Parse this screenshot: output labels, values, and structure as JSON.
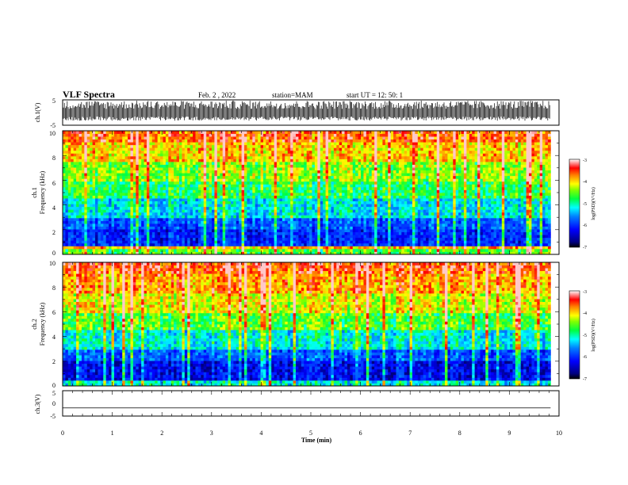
{
  "header": {
    "title": "VLF Spectra",
    "date": "Feb. 2 , 2022",
    "station": "station=MAM",
    "start": "start UT = 12: 50: 1"
  },
  "colors": {
    "spectrogram_scale": [
      "#000080",
      "#0000ff",
      "#0080ff",
      "#00ffff",
      "#00ff80",
      "#80ff00",
      "#ffff00",
      "#ff8000",
      "#ff0000",
      "#ffffff"
    ],
    "axes": "#000000",
    "waveform": "#000000"
  },
  "chart_data": [
    {
      "type": "line",
      "name": "ch1-waveform",
      "ylabel": "ch.1(V)",
      "ylim": [
        -5,
        5
      ],
      "yticks": [
        "5",
        "-5"
      ],
      "xlim": [
        0,
        10
      ],
      "description_values": {
        "x": [
          0,
          9.83
        ],
        "y_envelope_upper": 4.7,
        "y_envelope_lower": -3.2
      }
    },
    {
      "type": "heatmap",
      "name": "ch1-spectrogram",
      "ylabel_line1": "ch.1",
      "ylabel_line2": "Frequency (kHz)",
      "ylim": [
        0,
        10
      ],
      "yticks": [
        "0",
        "2",
        "4",
        "6",
        "8",
        "10"
      ],
      "xlim": [
        0,
        10
      ],
      "data_x_range": [
        0,
        9.83
      ],
      "colorbar": {
        "label": "log(PSD)(V²/Hz)",
        "range": [
          -7,
          -3
        ],
        "ticks": [
          "-3",
          "-4",
          "-5",
          "-6",
          "-7"
        ]
      },
      "rows_by_frequency_kHz": [
        {
          "f": [
            0,
            0.4
          ],
          "log_psd": -4.6
        },
        {
          "f": [
            0.4,
            0.7
          ],
          "log_psd": -3.8
        },
        {
          "f": [
            0.7,
            2.0
          ],
          "log_psd": -6.3
        },
        {
          "f": [
            2.0,
            3.0
          ],
          "log_psd": -6.0
        },
        {
          "f": [
            3.0,
            4.5
          ],
          "log_psd": -5.3
        },
        {
          "f": [
            4.5,
            6.0
          ],
          "log_psd": -4.8
        },
        {
          "f": [
            6.0,
            7.5
          ],
          "log_psd": -4.4
        },
        {
          "f": [
            7.5,
            9.0
          ],
          "log_psd": -3.9
        },
        {
          "f": [
            9.0,
            10.0
          ],
          "log_psd": -3.5
        }
      ]
    },
    {
      "type": "heatmap",
      "name": "ch2-spectrogram",
      "ylabel_line1": "ch.2",
      "ylabel_line2": "Frequency (kHz)",
      "ylim": [
        0,
        10
      ],
      "yticks": [
        "0",
        "2",
        "4",
        "6",
        "8",
        "10"
      ],
      "xlim": [
        0,
        10
      ],
      "data_x_range": [
        0,
        9.83
      ],
      "colorbar": {
        "label": "log(PSD)(V²/Hz)",
        "range": [
          -7,
          -3
        ],
        "ticks": [
          "-3",
          "-4",
          "-5",
          "-6",
          "-7"
        ]
      },
      "rows_by_frequency_kHz": [
        {
          "f": [
            0,
            0.4
          ],
          "log_psd": -5.2
        },
        {
          "f": [
            0.4,
            2.0
          ],
          "log_psd": -6.5
        },
        {
          "f": [
            2.0,
            3.0
          ],
          "log_psd": -6.0
        },
        {
          "f": [
            3.0,
            4.5
          ],
          "log_psd": -5.2
        },
        {
          "f": [
            4.5,
            6.0
          ],
          "log_psd": -4.6
        },
        {
          "f": [
            6.0,
            7.5
          ],
          "log_psd": -4.1
        },
        {
          "f": [
            7.5,
            9.0
          ],
          "log_psd": -3.7
        },
        {
          "f": [
            9.0,
            10.0
          ],
          "log_psd": -3.4
        }
      ]
    },
    {
      "type": "line",
      "name": "ch3-waveform",
      "ylabel": "ch.3(V)",
      "ylim": [
        -5,
        5
      ],
      "yticks": [
        "5",
        "0",
        "-5"
      ],
      "xlim": [
        0,
        10
      ],
      "xlabel": "Time (min)",
      "xticks": [
        "0",
        "1",
        "2",
        "3",
        "4",
        "5",
        "6",
        "7",
        "8",
        "9",
        "10"
      ],
      "x": [
        0,
        9.83
      ],
      "y": [
        -1.8,
        -1.8
      ]
    }
  ]
}
